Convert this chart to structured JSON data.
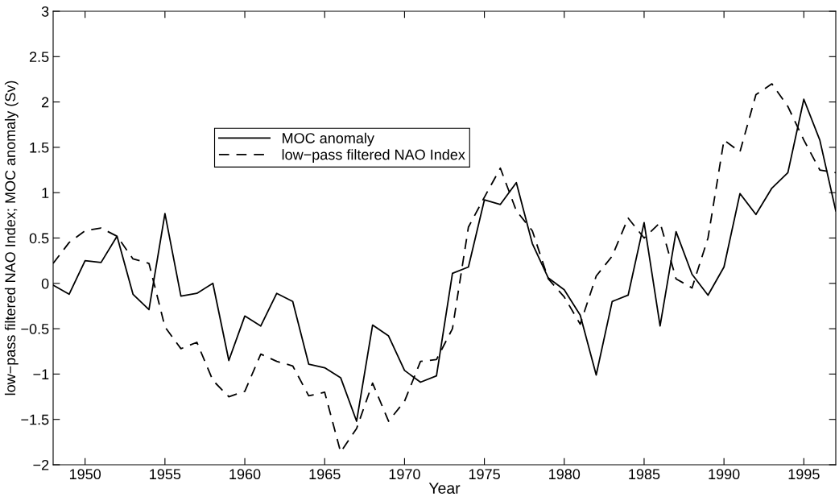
{
  "chart_data": {
    "type": "line",
    "xlabel": "Year",
    "ylabel": "low−pass filtered NAO Index; MOC anomaly (Sv)",
    "x": [
      1948,
      1949,
      1950,
      1951,
      1952,
      1953,
      1954,
      1955,
      1956,
      1957,
      1958,
      1959,
      1960,
      1961,
      1962,
      1963,
      1964,
      1965,
      1966,
      1967,
      1968,
      1969,
      1970,
      1971,
      1972,
      1973,
      1974,
      1975,
      1976,
      1977,
      1978,
      1979,
      1980,
      1981,
      1982,
      1983,
      1984,
      1985,
      1986,
      1987,
      1988,
      1989,
      1990,
      1991,
      1992,
      1993,
      1994,
      1995,
      1996,
      1997
    ],
    "series": [
      {
        "name": "MOC anomaly",
        "color": "#000000",
        "line_style": "solid",
        "values": [
          -0.02,
          -0.12,
          0.25,
          0.23,
          0.52,
          -0.12,
          -0.29,
          0.77,
          -0.14,
          -0.11,
          0.0,
          -0.85,
          -0.36,
          -0.47,
          -0.11,
          -0.2,
          -0.89,
          -0.93,
          -1.04,
          -1.52,
          -0.46,
          -0.58,
          -0.96,
          -1.09,
          -1.02,
          0.11,
          0.18,
          0.92,
          0.87,
          1.11,
          0.44,
          0.06,
          -0.07,
          -0.35,
          -1.01,
          -0.2,
          -0.13,
          0.67,
          -0.47,
          0.57,
          0.1,
          -0.13,
          0.18,
          0.99,
          0.76,
          1.05,
          1.22,
          2.03,
          1.58,
          0.8
        ]
      },
      {
        "name": "low−pass filtered NAO Index",
        "color": "#000000",
        "line_style": "dashed",
        "values": [
          0.22,
          0.45,
          0.58,
          0.61,
          0.52,
          0.27,
          0.22,
          -0.48,
          -0.72,
          -0.65,
          -1.07,
          -1.25,
          -1.19,
          -0.78,
          -0.86,
          -0.91,
          -1.24,
          -1.2,
          -1.86,
          -1.6,
          -1.1,
          -1.52,
          -1.3,
          -0.86,
          -0.84,
          -0.5,
          0.62,
          0.95,
          1.27,
          0.8,
          0.58,
          0.05,
          -0.15,
          -0.45,
          0.08,
          0.3,
          0.72,
          0.5,
          0.67,
          0.05,
          -0.05,
          0.5,
          1.58,
          1.45,
          2.08,
          2.2,
          1.95,
          1.58,
          1.25,
          1.22
        ]
      }
    ],
    "xlim": [
      1948,
      1997
    ],
    "xticks": [
      1950,
      1955,
      1960,
      1965,
      1970,
      1975,
      1980,
      1985,
      1990,
      1995
    ],
    "ylim": [
      -2,
      3
    ],
    "yticks": [
      {
        "value": -2,
        "label": "−2"
      },
      {
        "value": -1.5,
        "label": "−1.5"
      },
      {
        "value": -1,
        "label": "−1"
      },
      {
        "value": -0.5,
        "label": "−0.5"
      },
      0,
      0.5,
      1,
      1.5,
      2,
      2.5,
      3
    ],
    "grid": false,
    "legend": "top left",
    "marker": "none"
  }
}
